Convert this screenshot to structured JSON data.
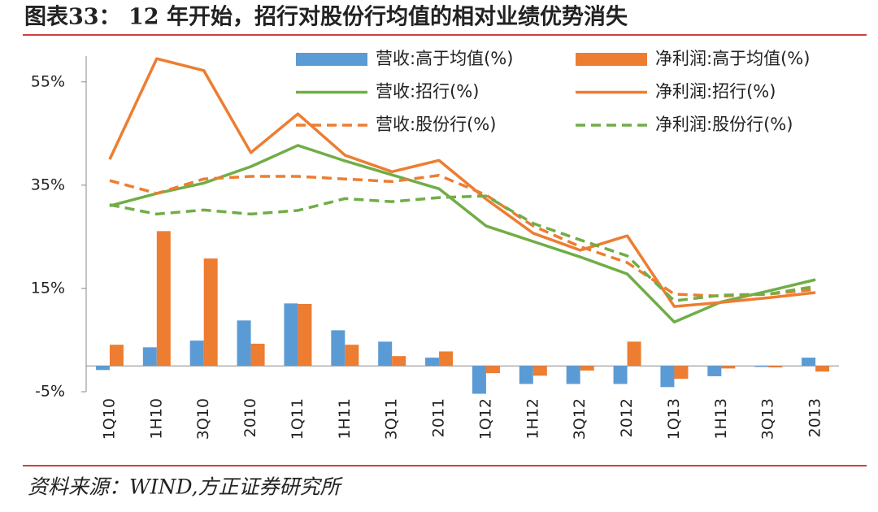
{
  "chart_data": {
    "type": "bar",
    "title": "图表33：  12 年开始，招行对股份行均值的相对业绩优势消失",
    "source": "资料来源：WIND,方正证券研究所",
    "categories": [
      "1Q10",
      "1H10",
      "3Q10",
      "2010",
      "1Q11",
      "1H11",
      "3Q11",
      "2011",
      "1Q12",
      "1H12",
      "3Q12",
      "2012",
      "1Q13",
      "1H13",
      "3Q13",
      "2013"
    ],
    "series": [
      {
        "name": "营收:高于均值(%)",
        "type": "bar",
        "color": "#5b9bd5",
        "values": [
          -0.8,
          3.6,
          4.9,
          8.8,
          12.1,
          6.9,
          4.7,
          1.6,
          -5.4,
          -3.5,
          -3.5,
          -3.5,
          -4.1,
          -2.0,
          -0.2,
          1.6
        ]
      },
      {
        "name": "净利润:高于均值(%)",
        "type": "bar",
        "color": "#ed7d31",
        "values": [
          4.1,
          26.1,
          20.8,
          4.3,
          12.0,
          4.1,
          1.9,
          2.8,
          -1.4,
          -1.9,
          -0.9,
          4.7,
          -2.5,
          -0.5,
          -0.3,
          -1.1
        ]
      },
      {
        "name": "营收:招行(%)",
        "type": "line",
        "color": "#70ad47",
        "values": [
          31.0,
          33.4,
          35.4,
          38.6,
          42.7,
          39.7,
          37.0,
          34.3,
          27.1,
          24.1,
          21.1,
          17.8,
          8.5,
          12.4,
          14.5,
          16.7
        ]
      },
      {
        "name": "净利润:招行(%)",
        "type": "line",
        "color": "#ed7d31",
        "values": [
          40.0,
          59.5,
          57.2,
          41.3,
          48.8,
          40.8,
          37.6,
          39.8,
          32.3,
          25.7,
          22.4,
          25.2,
          11.5,
          12.3,
          13.2,
          14.2
        ]
      },
      {
        "name": "营收:股份行(%)",
        "type": "line",
        "dashed": true,
        "color": "#ed7d31",
        "values": [
          35.9,
          33.4,
          36.2,
          36.7,
          36.7,
          36.2,
          35.7,
          36.9,
          33.1,
          27.1,
          23.1,
          20.0,
          13.9,
          13.5,
          13.9,
          14.8
        ]
      },
      {
        "name": "净利润:股份行(%)",
        "type": "line",
        "dashed": true,
        "color": "#70ad47",
        "values": [
          31.2,
          29.4,
          30.2,
          29.4,
          30.1,
          32.4,
          31.8,
          32.6,
          32.9,
          27.6,
          24.4,
          21.3,
          12.6,
          13.7,
          13.9,
          15.4
        ]
      }
    ],
    "ylim": [
      -5,
      60
    ],
    "yticks": [
      {
        "value": -5,
        "label": "-5%"
      },
      {
        "value": 15,
        "label": "15%"
      },
      {
        "value": 35,
        "label": "35%"
      },
      {
        "value": 55,
        "label": "55%"
      }
    ],
    "grid": false
  }
}
